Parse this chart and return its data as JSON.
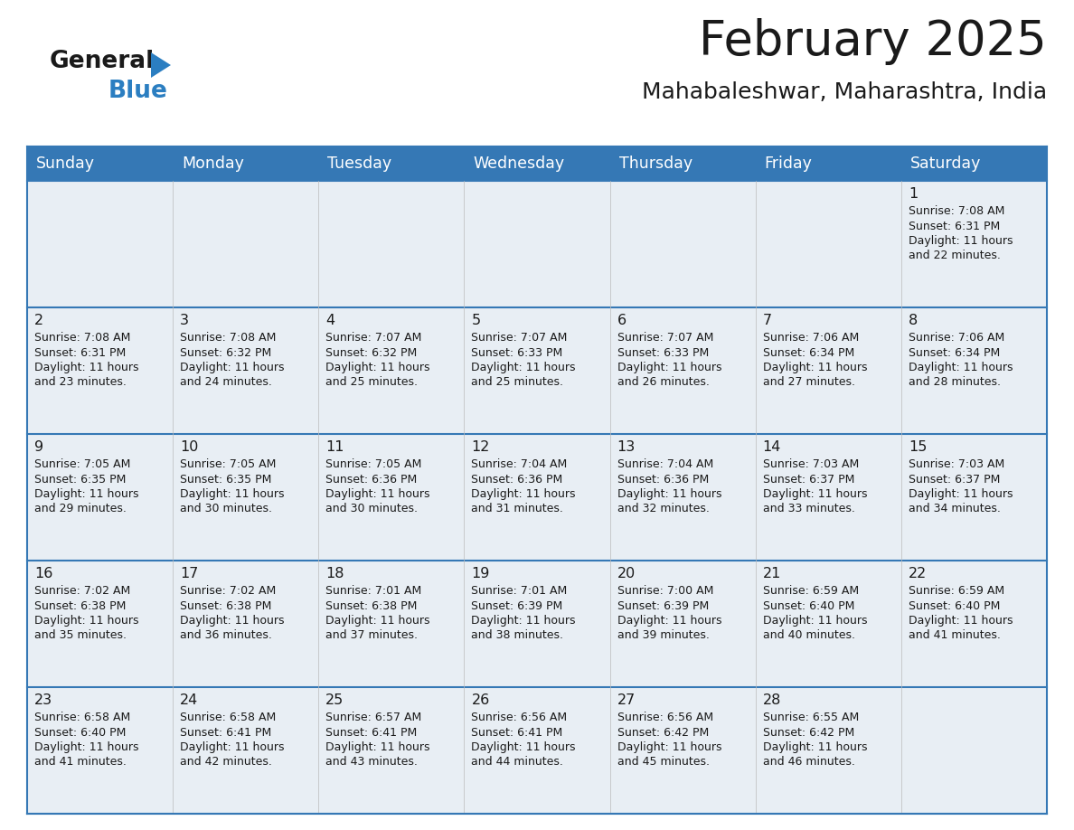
{
  "title": "February 2025",
  "subtitle": "Mahabaleshwar, Maharashtra, India",
  "header_color": "#3578b5",
  "header_text_color": "#ffffff",
  "cell_bg_color": "#e8eef4",
  "border_color": "#3578b5",
  "text_color": "#1a1a1a",
  "days_of_week": [
    "Sunday",
    "Monday",
    "Tuesday",
    "Wednesday",
    "Thursday",
    "Friday",
    "Saturday"
  ],
  "calendar_data": [
    [
      {
        "day": "",
        "sunrise": "",
        "sunset": "",
        "daylight_line1": "",
        "daylight_line2": ""
      },
      {
        "day": "",
        "sunrise": "",
        "sunset": "",
        "daylight_line1": "",
        "daylight_line2": ""
      },
      {
        "day": "",
        "sunrise": "",
        "sunset": "",
        "daylight_line1": "",
        "daylight_line2": ""
      },
      {
        "day": "",
        "sunrise": "",
        "sunset": "",
        "daylight_line1": "",
        "daylight_line2": ""
      },
      {
        "day": "",
        "sunrise": "",
        "sunset": "",
        "daylight_line1": "",
        "daylight_line2": ""
      },
      {
        "day": "",
        "sunrise": "",
        "sunset": "",
        "daylight_line1": "",
        "daylight_line2": ""
      },
      {
        "day": "1",
        "sunrise": "7:08 AM",
        "sunset": "6:31 PM",
        "daylight_line1": "Daylight: 11 hours",
        "daylight_line2": "and 22 minutes."
      }
    ],
    [
      {
        "day": "2",
        "sunrise": "7:08 AM",
        "sunset": "6:31 PM",
        "daylight_line1": "Daylight: 11 hours",
        "daylight_line2": "and 23 minutes."
      },
      {
        "day": "3",
        "sunrise": "7:08 AM",
        "sunset": "6:32 PM",
        "daylight_line1": "Daylight: 11 hours",
        "daylight_line2": "and 24 minutes."
      },
      {
        "day": "4",
        "sunrise": "7:07 AM",
        "sunset": "6:32 PM",
        "daylight_line1": "Daylight: 11 hours",
        "daylight_line2": "and 25 minutes."
      },
      {
        "day": "5",
        "sunrise": "7:07 AM",
        "sunset": "6:33 PM",
        "daylight_line1": "Daylight: 11 hours",
        "daylight_line2": "and 25 minutes."
      },
      {
        "day": "6",
        "sunrise": "7:07 AM",
        "sunset": "6:33 PM",
        "daylight_line1": "Daylight: 11 hours",
        "daylight_line2": "and 26 minutes."
      },
      {
        "day": "7",
        "sunrise": "7:06 AM",
        "sunset": "6:34 PM",
        "daylight_line1": "Daylight: 11 hours",
        "daylight_line2": "and 27 minutes."
      },
      {
        "day": "8",
        "sunrise": "7:06 AM",
        "sunset": "6:34 PM",
        "daylight_line1": "Daylight: 11 hours",
        "daylight_line2": "and 28 minutes."
      }
    ],
    [
      {
        "day": "9",
        "sunrise": "7:05 AM",
        "sunset": "6:35 PM",
        "daylight_line1": "Daylight: 11 hours",
        "daylight_line2": "and 29 minutes."
      },
      {
        "day": "10",
        "sunrise": "7:05 AM",
        "sunset": "6:35 PM",
        "daylight_line1": "Daylight: 11 hours",
        "daylight_line2": "and 30 minutes."
      },
      {
        "day": "11",
        "sunrise": "7:05 AM",
        "sunset": "6:36 PM",
        "daylight_line1": "Daylight: 11 hours",
        "daylight_line2": "and 30 minutes."
      },
      {
        "day": "12",
        "sunrise": "7:04 AM",
        "sunset": "6:36 PM",
        "daylight_line1": "Daylight: 11 hours",
        "daylight_line2": "and 31 minutes."
      },
      {
        "day": "13",
        "sunrise": "7:04 AM",
        "sunset": "6:36 PM",
        "daylight_line1": "Daylight: 11 hours",
        "daylight_line2": "and 32 minutes."
      },
      {
        "day": "14",
        "sunrise": "7:03 AM",
        "sunset": "6:37 PM",
        "daylight_line1": "Daylight: 11 hours",
        "daylight_line2": "and 33 minutes."
      },
      {
        "day": "15",
        "sunrise": "7:03 AM",
        "sunset": "6:37 PM",
        "daylight_line1": "Daylight: 11 hours",
        "daylight_line2": "and 34 minutes."
      }
    ],
    [
      {
        "day": "16",
        "sunrise": "7:02 AM",
        "sunset": "6:38 PM",
        "daylight_line1": "Daylight: 11 hours",
        "daylight_line2": "and 35 minutes."
      },
      {
        "day": "17",
        "sunrise": "7:02 AM",
        "sunset": "6:38 PM",
        "daylight_line1": "Daylight: 11 hours",
        "daylight_line2": "and 36 minutes."
      },
      {
        "day": "18",
        "sunrise": "7:01 AM",
        "sunset": "6:38 PM",
        "daylight_line1": "Daylight: 11 hours",
        "daylight_line2": "and 37 minutes."
      },
      {
        "day": "19",
        "sunrise": "7:01 AM",
        "sunset": "6:39 PM",
        "daylight_line1": "Daylight: 11 hours",
        "daylight_line2": "and 38 minutes."
      },
      {
        "day": "20",
        "sunrise": "7:00 AM",
        "sunset": "6:39 PM",
        "daylight_line1": "Daylight: 11 hours",
        "daylight_line2": "and 39 minutes."
      },
      {
        "day": "21",
        "sunrise": "6:59 AM",
        "sunset": "6:40 PM",
        "daylight_line1": "Daylight: 11 hours",
        "daylight_line2": "and 40 minutes."
      },
      {
        "day": "22",
        "sunrise": "6:59 AM",
        "sunset": "6:40 PM",
        "daylight_line1": "Daylight: 11 hours",
        "daylight_line2": "and 41 minutes."
      }
    ],
    [
      {
        "day": "23",
        "sunrise": "6:58 AM",
        "sunset": "6:40 PM",
        "daylight_line1": "Daylight: 11 hours",
        "daylight_line2": "and 41 minutes."
      },
      {
        "day": "24",
        "sunrise": "6:58 AM",
        "sunset": "6:41 PM",
        "daylight_line1": "Daylight: 11 hours",
        "daylight_line2": "and 42 minutes."
      },
      {
        "day": "25",
        "sunrise": "6:57 AM",
        "sunset": "6:41 PM",
        "daylight_line1": "Daylight: 11 hours",
        "daylight_line2": "and 43 minutes."
      },
      {
        "day": "26",
        "sunrise": "6:56 AM",
        "sunset": "6:41 PM",
        "daylight_line1": "Daylight: 11 hours",
        "daylight_line2": "and 44 minutes."
      },
      {
        "day": "27",
        "sunrise": "6:56 AM",
        "sunset": "6:42 PM",
        "daylight_line1": "Daylight: 11 hours",
        "daylight_line2": "and 45 minutes."
      },
      {
        "day": "28",
        "sunrise": "6:55 AM",
        "sunset": "6:42 PM",
        "daylight_line1": "Daylight: 11 hours",
        "daylight_line2": "and 46 minutes."
      },
      {
        "day": "",
        "sunrise": "",
        "sunset": "",
        "daylight_line1": "",
        "daylight_line2": ""
      }
    ]
  ],
  "logo_color_general": "#1a1a1a",
  "logo_color_blue": "#2b7ec1",
  "logo_triangle_color": "#2b7ec1"
}
